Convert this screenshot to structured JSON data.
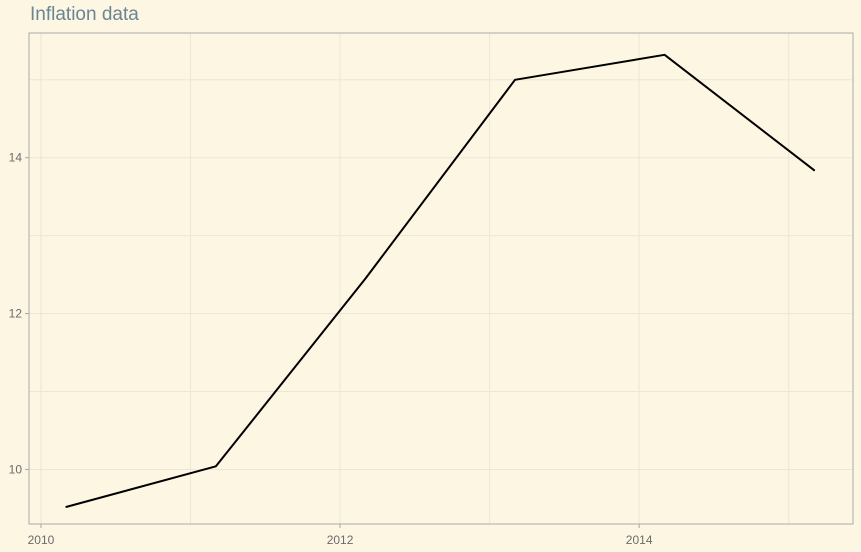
{
  "chart_data": {
    "type": "line",
    "title": "Inflation data",
    "xlabel": "",
    "ylabel": "",
    "x": [
      2010.17,
      2011.17,
      2012.17,
      2013.17,
      2014.17,
      2015.17
    ],
    "series": [
      {
        "values": [
          9.52,
          10.04,
          12.45,
          15.0,
          15.32,
          13.84
        ],
        "color": "#000000"
      }
    ],
    "xlim": [
      2009.92,
      2015.43
    ],
    "ylim": [
      9.3,
      15.6
    ],
    "x_ticks": [
      2010,
      2012,
      2014
    ],
    "x_tick_labels": [
      "2010",
      "2012",
      "2014"
    ],
    "y_ticks": [
      10,
      12,
      14
    ],
    "y_tick_labels": [
      "10",
      "12",
      "14"
    ],
    "grid": true,
    "background_color": "#fdf6e3",
    "grid_color": "#ece6d6",
    "axis_color": "#a9a9a9",
    "title_color": "#6a8593"
  }
}
